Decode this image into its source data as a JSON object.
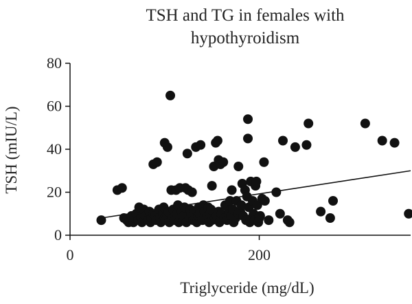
{
  "chart_data": {
    "type": "scatter",
    "title_lines": [
      "TSH and TG in females with",
      "hypothyroidism"
    ],
    "xlabel": "Triglyceride (mg/dL)",
    "ylabel": "TSH (mIU/L)",
    "xlim": [
      0,
      360
    ],
    "ylim": [
      0,
      80
    ],
    "xticks": [
      0,
      200
    ],
    "yticks": [
      0,
      20,
      40,
      60,
      80
    ],
    "grid": false,
    "legend": "none",
    "point_color": "#111111",
    "points": [
      [
        33,
        7
      ],
      [
        50,
        21
      ],
      [
        55,
        22
      ],
      [
        57,
        8
      ],
      [
        60,
        7
      ],
      [
        62,
        6
      ],
      [
        65,
        9
      ],
      [
        67,
        6
      ],
      [
        68,
        8
      ],
      [
        70,
        10
      ],
      [
        72,
        7
      ],
      [
        73,
        13
      ],
      [
        75,
        8
      ],
      [
        76,
        6
      ],
      [
        78,
        12
      ],
      [
        80,
        9
      ],
      [
        82,
        7
      ],
      [
        84,
        11
      ],
      [
        85,
        6
      ],
      [
        86,
        8
      ],
      [
        88,
        10
      ],
      [
        88,
        33
      ],
      [
        90,
        9
      ],
      [
        91,
        7
      ],
      [
        92,
        34
      ],
      [
        94,
        12
      ],
      [
        95,
        8
      ],
      [
        96,
        6
      ],
      [
        98,
        10
      ],
      [
        99,
        13
      ],
      [
        100,
        8
      ],
      [
        100,
        43
      ],
      [
        101,
        7
      ],
      [
        103,
        9
      ],
      [
        103,
        41
      ],
      [
        104,
        11
      ],
      [
        105,
        6
      ],
      [
        106,
        65
      ],
      [
        107,
        21
      ],
      [
        108,
        8
      ],
      [
        109,
        12
      ],
      [
        110,
        7
      ],
      [
        111,
        9
      ],
      [
        112,
        21
      ],
      [
        113,
        10
      ],
      [
        114,
        14
      ],
      [
        115,
        6
      ],
      [
        116,
        22
      ],
      [
        117,
        8
      ],
      [
        118,
        11
      ],
      [
        119,
        7
      ],
      [
        120,
        9
      ],
      [
        121,
        13
      ],
      [
        122,
        22
      ],
      [
        123,
        6
      ],
      [
        124,
        38
      ],
      [
        125,
        21
      ],
      [
        126,
        8
      ],
      [
        127,
        12
      ],
      [
        128,
        10
      ],
      [
        129,
        20
      ],
      [
        130,
        7
      ],
      [
        131,
        11
      ],
      [
        132,
        8
      ],
      [
        133,
        41
      ],
      [
        134,
        6
      ],
      [
        135,
        9
      ],
      [
        136,
        13
      ],
      [
        137,
        10
      ],
      [
        138,
        42
      ],
      [
        140,
        7
      ],
      [
        141,
        14
      ],
      [
        142,
        11
      ],
      [
        143,
        8
      ],
      [
        145,
        9
      ],
      [
        146,
        13
      ],
      [
        147,
        6
      ],
      [
        148,
        10
      ],
      [
        149,
        12
      ],
      [
        150,
        7
      ],
      [
        150,
        23
      ],
      [
        152,
        32
      ],
      [
        153,
        8
      ],
      [
        154,
        43
      ],
      [
        155,
        9
      ],
      [
        156,
        44
      ],
      [
        157,
        35
      ],
      [
        157,
        11
      ],
      [
        158,
        6
      ],
      [
        159,
        33
      ],
      [
        160,
        10
      ],
      [
        162,
        34
      ],
      [
        163,
        8
      ],
      [
        164,
        14
      ],
      [
        166,
        7
      ],
      [
        168,
        11
      ],
      [
        169,
        16
      ],
      [
        170,
        9
      ],
      [
        171,
        21
      ],
      [
        172,
        12
      ],
      [
        173,
        6
      ],
      [
        175,
        8
      ],
      [
        176,
        16
      ],
      [
        178,
        32
      ],
      [
        178,
        10
      ],
      [
        180,
        11
      ],
      [
        181,
        14
      ],
      [
        182,
        24
      ],
      [
        183,
        9
      ],
      [
        185,
        21
      ],
      [
        186,
        7
      ],
      [
        187,
        18
      ],
      [
        188,
        54
      ],
      [
        188,
        45
      ],
      [
        189,
        13
      ],
      [
        190,
        6
      ],
      [
        191,
        25
      ],
      [
        192,
        8
      ],
      [
        193,
        16
      ],
      [
        194,
        10
      ],
      [
        195,
        7
      ],
      [
        196,
        23
      ],
      [
        197,
        25
      ],
      [
        198,
        14
      ],
      [
        199,
        6
      ],
      [
        200,
        8
      ],
      [
        201,
        9
      ],
      [
        203,
        17
      ],
      [
        205,
        34
      ],
      [
        206,
        16
      ],
      [
        210,
        7
      ],
      [
        218,
        20
      ],
      [
        222,
        10
      ],
      [
        225,
        44
      ],
      [
        230,
        7
      ],
      [
        232,
        6
      ],
      [
        238,
        41
      ],
      [
        250,
        42
      ],
      [
        252,
        52
      ],
      [
        265,
        11
      ],
      [
        275,
        8
      ],
      [
        278,
        16
      ],
      [
        312,
        52
      ],
      [
        330,
        44
      ],
      [
        343,
        43
      ],
      [
        358,
        10
      ]
    ],
    "trendline": {
      "x": [
        33,
        360
      ],
      "y": [
        8,
        30
      ]
    }
  }
}
